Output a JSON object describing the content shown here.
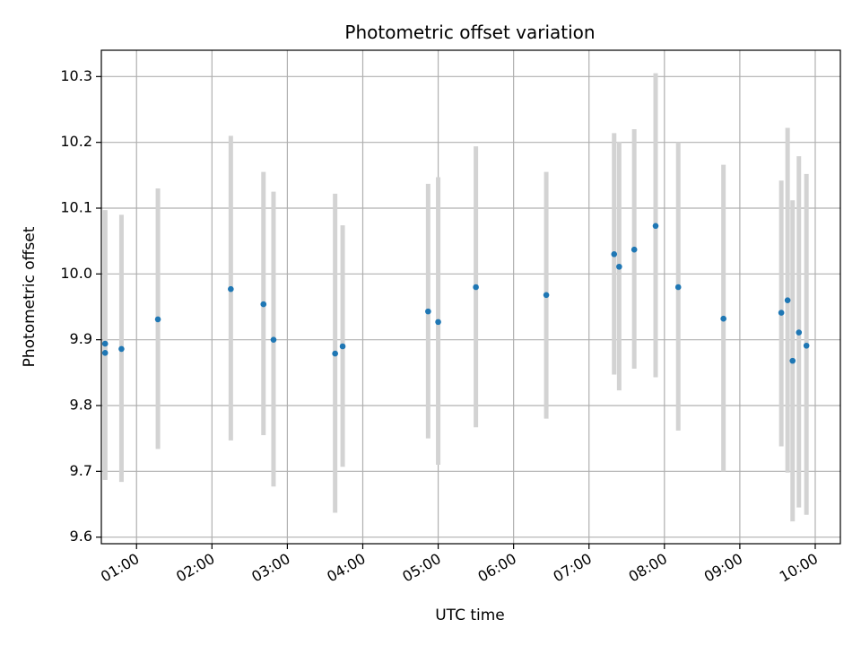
{
  "chart_data": {
    "type": "scatter",
    "title": "Photometric offset variation",
    "xlabel": "UTC time",
    "ylabel": "Photometric offset",
    "grid": true,
    "x_axis": "time",
    "xlim": [
      "00:32",
      "10:20"
    ],
    "ylim": [
      9.59,
      10.34
    ],
    "x_ticks": [
      "01:00",
      "02:00",
      "03:00",
      "04:00",
      "05:00",
      "06:00",
      "07:00",
      "08:00",
      "09:00",
      "10:00"
    ],
    "y_ticks": [
      "9.6",
      "9.7",
      "9.8",
      "9.9",
      "10.0",
      "10.1",
      "10.2",
      "10.3"
    ],
    "series": [
      {
        "marker_color": "#1f77b4",
        "errorbar_color": "#d3d3d3",
        "points": [
          {
            "x": "00:35",
            "y": 9.894,
            "err_low": 9.687,
            "err_high": 10.097
          },
          {
            "x": "00:35",
            "y": 9.88,
            "err_low": 9.687,
            "err_high": 10.097
          },
          {
            "x": "00:48",
            "y": 9.886,
            "err_low": 9.684,
            "err_high": 10.09
          },
          {
            "x": "01:17",
            "y": 9.931,
            "err_low": 9.734,
            "err_high": 10.13
          },
          {
            "x": "02:15",
            "y": 9.977,
            "err_low": 9.747,
            "err_high": 10.21
          },
          {
            "x": "02:41",
            "y": 9.954,
            "err_low": 9.755,
            "err_high": 10.155
          },
          {
            "x": "02:49",
            "y": 9.9,
            "err_low": 9.677,
            "err_high": 10.125
          },
          {
            "x": "03:38",
            "y": 9.879,
            "err_low": 9.637,
            "err_high": 10.122
          },
          {
            "x": "03:44",
            "y": 9.89,
            "err_low": 9.707,
            "err_high": 10.074
          },
          {
            "x": "04:52",
            "y": 9.943,
            "err_low": 9.75,
            "err_high": 10.137
          },
          {
            "x": "05:00",
            "y": 9.927,
            "err_low": 9.71,
            "err_high": 10.147
          },
          {
            "x": "05:30",
            "y": 9.98,
            "err_low": 9.767,
            "err_high": 10.194
          },
          {
            "x": "06:26",
            "y": 9.968,
            "err_low": 9.78,
            "err_high": 10.155
          },
          {
            "x": "07:20",
            "y": 10.03,
            "err_low": 9.847,
            "err_high": 10.214
          },
          {
            "x": "07:24",
            "y": 10.011,
            "err_low": 9.823,
            "err_high": 10.201
          },
          {
            "x": "07:36",
            "y": 10.037,
            "err_low": 9.856,
            "err_high": 10.22
          },
          {
            "x": "07:53",
            "y": 10.073,
            "err_low": 9.843,
            "err_high": 10.305
          },
          {
            "x": "08:11",
            "y": 9.98,
            "err_low": 9.762,
            "err_high": 10.2
          },
          {
            "x": "08:47",
            "y": 9.932,
            "err_low": 9.7,
            "err_high": 10.166
          },
          {
            "x": "09:33",
            "y": 9.941,
            "err_low": 9.738,
            "err_high": 10.142
          },
          {
            "x": "09:38",
            "y": 9.96,
            "err_low": 9.698,
            "err_high": 10.222
          },
          {
            "x": "09:42",
            "y": 9.868,
            "err_low": 9.624,
            "err_high": 10.112
          },
          {
            "x": "09:47",
            "y": 9.911,
            "err_low": 9.645,
            "err_high": 10.179
          },
          {
            "x": "09:53",
            "y": 9.891,
            "err_low": 9.634,
            "err_high": 10.152
          }
        ]
      }
    ]
  }
}
